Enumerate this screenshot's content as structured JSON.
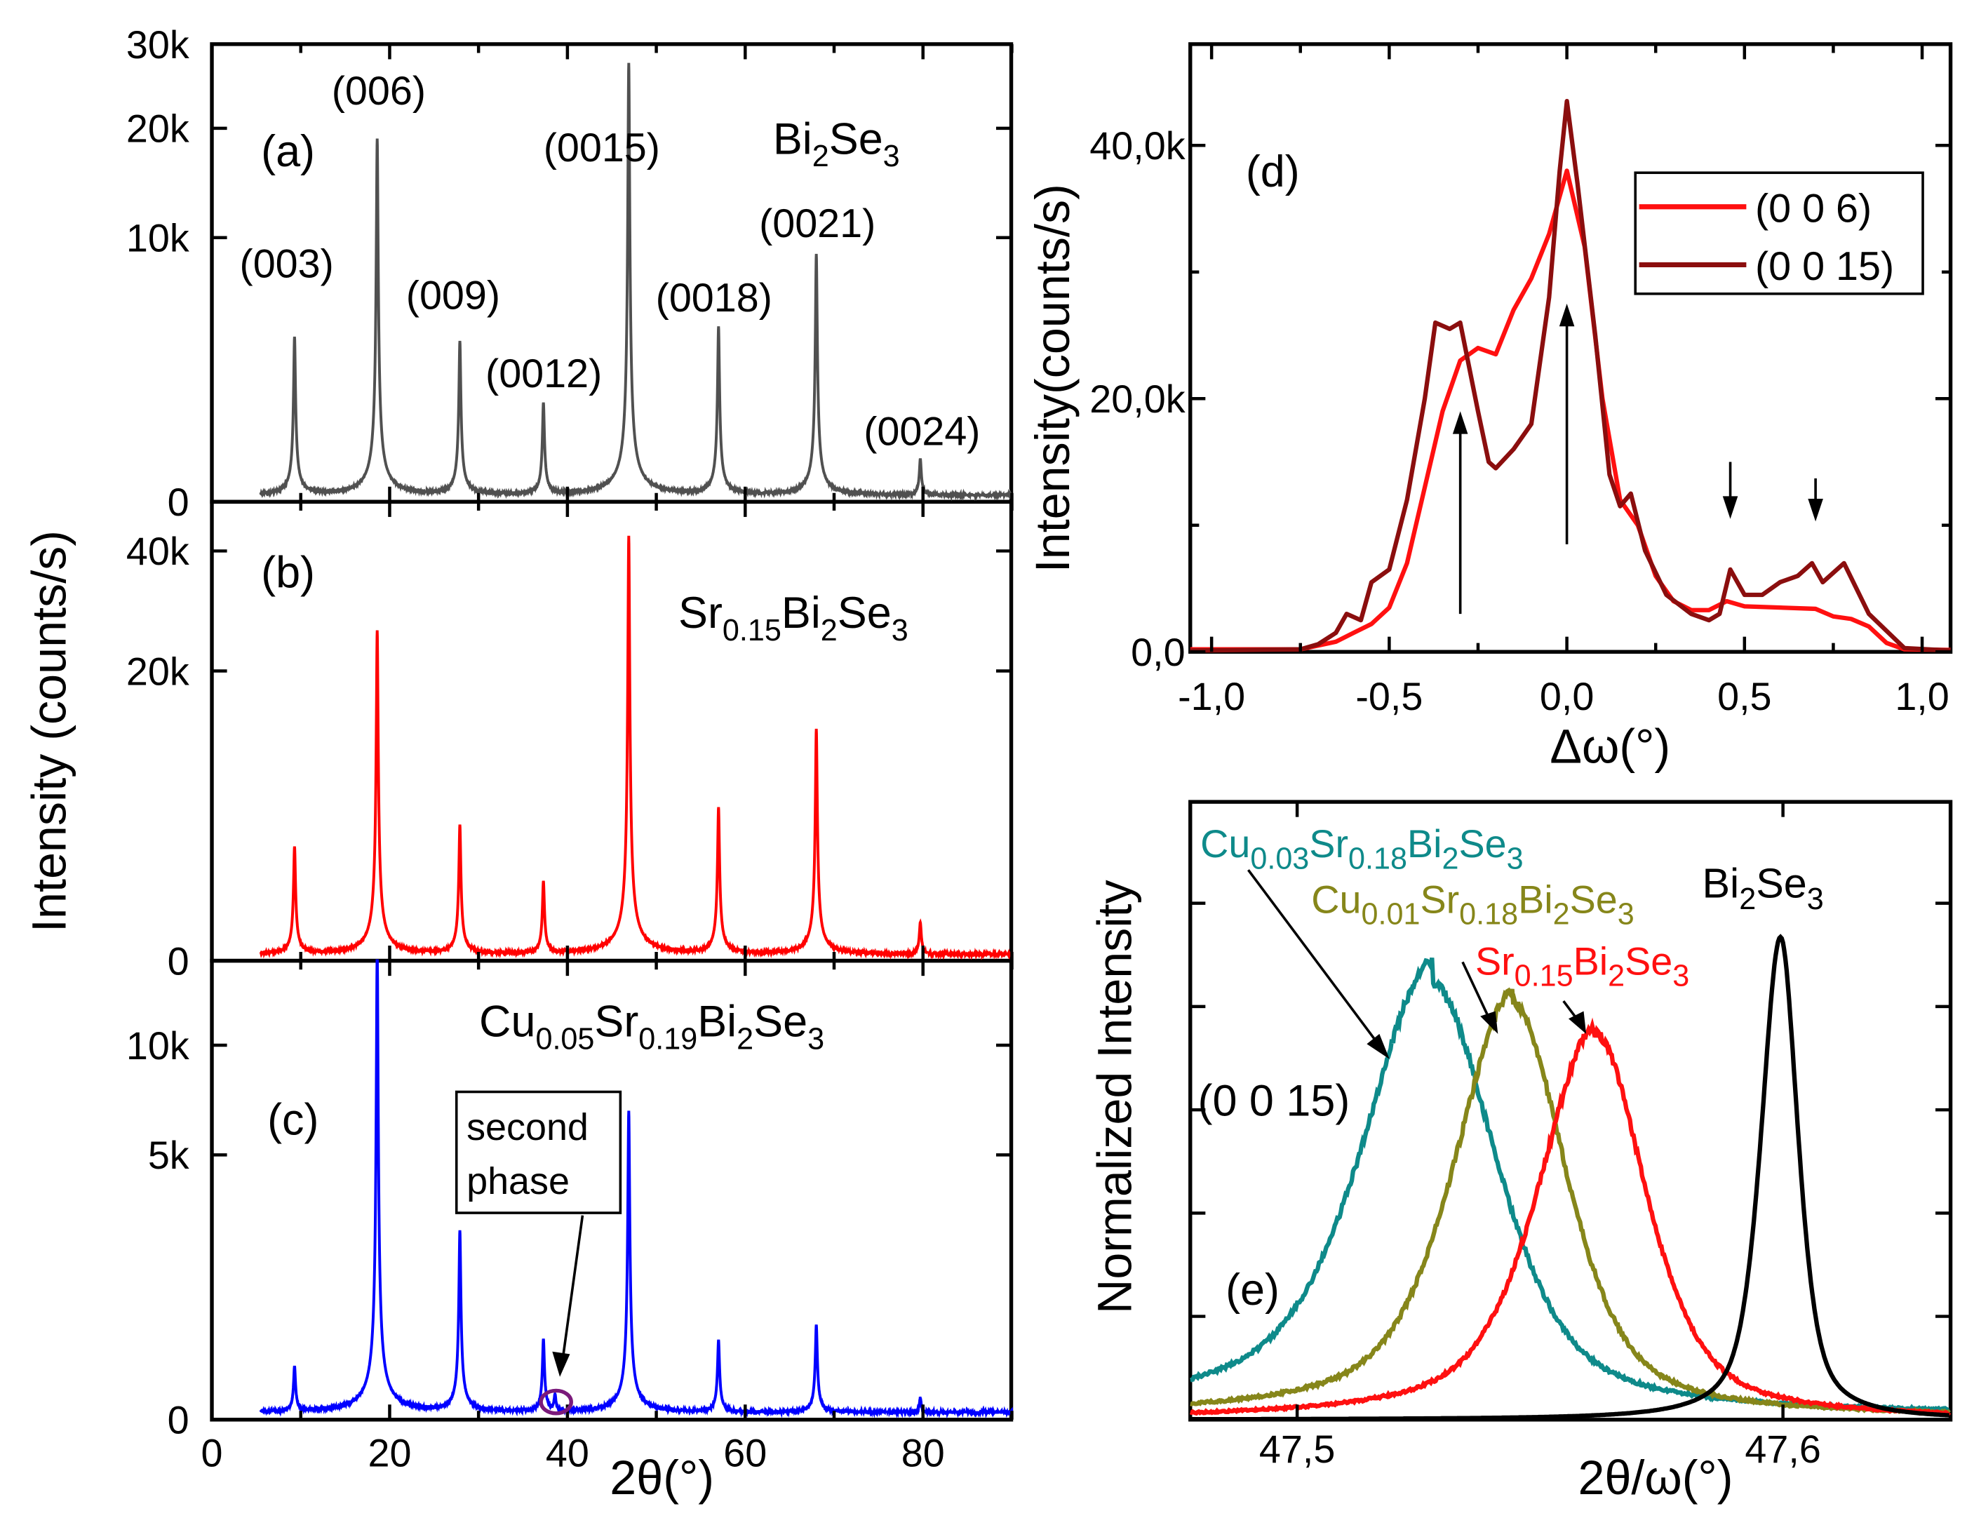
{
  "chart_data": [
    {
      "type": "line",
      "panel": "(a)",
      "title": "Bi2Se3",
      "title_parts": [
        "Bi",
        "2",
        "Se",
        "3"
      ],
      "color": "#505050",
      "xlabel": "2θ(°)",
      "ylabel": "Intensity (counts/s)",
      "xlim": [
        0,
        90
      ],
      "ylim": [
        0,
        30000
      ],
      "yscale": "sqrt",
      "xticks": [
        "0",
        "20",
        "40",
        "60",
        "80"
      ],
      "yticks": [
        {
          "v": 0,
          "t": "0"
        },
        {
          "v": 10000,
          "t": "10k"
        },
        {
          "v": 20000,
          "t": "20k"
        },
        {
          "v": 30000,
          "t": "30k"
        }
      ],
      "baseline": 6,
      "x_start": 5.5,
      "peaks": [
        {
          "hkl": "(003)",
          "x": 9.3,
          "y": 3900
        },
        {
          "hkl": "(006)",
          "x": 18.6,
          "y": 18900
        },
        {
          "hkl": "(009)",
          "x": 27.9,
          "y": 3700
        },
        {
          "hkl": "(0012)",
          "x": 37.3,
          "y": 1400
        },
        {
          "hkl": "(0015)",
          "x": 46.9,
          "y": 27600
        },
        {
          "hkl": "(0018)",
          "x": 57.0,
          "y": 4400
        },
        {
          "hkl": "(0021)",
          "x": 68.0,
          "y": 8800
        },
        {
          "hkl": "(0024)",
          "x": 79.7,
          "y": 260
        }
      ]
    },
    {
      "type": "line",
      "panel": "(b)",
      "title": "Sr0.15Bi2Se3",
      "title_parts": [
        "Sr",
        "0.15",
        "Bi",
        "2",
        "Se",
        "3"
      ],
      "color": "#ff0000",
      "xlim": [
        0,
        90
      ],
      "ylim": [
        0,
        50000
      ],
      "yscale": "sqrt",
      "yticks": [
        {
          "v": 0,
          "t": "0"
        },
        {
          "v": 20000,
          "t": "20k"
        },
        {
          "v": 40000,
          "t": "40k"
        }
      ],
      "baseline": 10,
      "x_start": 5.5,
      "peaks": [
        {
          "x": 9.3,
          "y": 3100
        },
        {
          "x": 18.6,
          "y": 26000
        },
        {
          "x": 27.9,
          "y": 4400
        },
        {
          "x": 37.3,
          "y": 1500
        },
        {
          "x": 46.9,
          "y": 43000
        },
        {
          "x": 57.0,
          "y": 5600
        },
        {
          "x": 68.0,
          "y": 12800
        },
        {
          "x": 79.7,
          "y": 340
        }
      ]
    },
    {
      "type": "line",
      "panel": "(c)",
      "title": "Cu0.05Sr0.19Bi2Se3",
      "title_parts": [
        "Cu",
        "0.05",
        "Sr",
        "0.19",
        "Bi",
        "2",
        "Se",
        "3"
      ],
      "color": "#0000ff",
      "xlim": [
        0,
        90
      ],
      "ylim": [
        0,
        15000
      ],
      "yscale": "sqrt",
      "yticks": [
        {
          "v": 0,
          "t": "0"
        },
        {
          "v": 5000,
          "t": "5k"
        },
        {
          "v": 10000,
          "t": "10k"
        }
      ],
      "baseline": 4,
      "x_start": 5.5,
      "annotation": {
        "line1": "second",
        "line2": "phase",
        "x": 38.6
      },
      "peaks": [
        {
          "x": 9.3,
          "y": 200
        },
        {
          "x": 18.6,
          "y": 16000
        },
        {
          "x": 27.9,
          "y": 2550
        },
        {
          "x": 37.3,
          "y": 460
        },
        {
          "x": 38.6,
          "y": 40
        },
        {
          "x": 46.9,
          "y": 6800
        },
        {
          "x": 57.0,
          "y": 450
        },
        {
          "x": 68.0,
          "y": 640
        },
        {
          "x": 79.7,
          "y": 30
        }
      ]
    },
    {
      "type": "line",
      "panel": "(d)",
      "xlabel": "Δω(°)",
      "ylabel": "Intensity(counts/s)",
      "xlim": [
        -1.06,
        1.08
      ],
      "ylim": [
        0,
        48000
      ],
      "xticks": [
        {
          "v": -1,
          "t": "-1,0"
        },
        {
          "v": -0.5,
          "t": "-0,5"
        },
        {
          "v": 0,
          "t": "0,0"
        },
        {
          "v": 0.5,
          "t": "0,5"
        },
        {
          "v": 1,
          "t": "1,0"
        }
      ],
      "yticks": [
        {
          "v": 0,
          "t": "0,0"
        },
        {
          "v": 20000,
          "t": "20,0k"
        },
        {
          "v": 40000,
          "t": "40,0k"
        }
      ],
      "legend": "top-right",
      "series": [
        {
          "name": "(0 0 6)",
          "color": "#ff1010",
          "points": [
            [
              -1.06,
              200
            ],
            [
              -0.75,
              200
            ],
            [
              -0.65,
              800
            ],
            [
              -0.6,
              1500
            ],
            [
              -0.55,
              2200
            ],
            [
              -0.5,
              3500
            ],
            [
              -0.45,
              7000
            ],
            [
              -0.4,
              13000
            ],
            [
              -0.35,
              19000
            ],
            [
              -0.3,
              23000
            ],
            [
              -0.25,
              24000
            ],
            [
              -0.2,
              23500
            ],
            [
              -0.15,
              27000
            ],
            [
              -0.1,
              29500
            ],
            [
              -0.05,
              33000
            ],
            [
              0,
              38000
            ],
            [
              0.05,
              32000
            ],
            [
              0.1,
              20000
            ],
            [
              0.15,
              12000
            ],
            [
              0.2,
              10000
            ],
            [
              0.25,
              6000
            ],
            [
              0.3,
              4000
            ],
            [
              0.35,
              3300
            ],
            [
              0.4,
              3300
            ],
            [
              0.45,
              4000
            ],
            [
              0.5,
              3600
            ],
            [
              0.6,
              3500
            ],
            [
              0.7,
              3400
            ],
            [
              0.75,
              2800
            ],
            [
              0.8,
              2600
            ],
            [
              0.85,
              2000
            ],
            [
              0.9,
              700
            ],
            [
              0.95,
              200
            ],
            [
              1.08,
              150
            ]
          ]
        },
        {
          "name": "(0 0 15)",
          "color": "#8b0e0e",
          "points": [
            [
              -1.06,
              100
            ],
            [
              -0.75,
              200
            ],
            [
              -0.7,
              600
            ],
            [
              -0.65,
              1500
            ],
            [
              -0.62,
              3000
            ],
            [
              -0.58,
              2500
            ],
            [
              -0.55,
              5500
            ],
            [
              -0.5,
              6500
            ],
            [
              -0.45,
              12000
            ],
            [
              -0.4,
              20000
            ],
            [
              -0.37,
              26000
            ],
            [
              -0.33,
              25500
            ],
            [
              -0.3,
              26000
            ],
            [
              -0.25,
              19000
            ],
            [
              -0.22,
              15000
            ],
            [
              -0.2,
              14500
            ],
            [
              -0.15,
              16000
            ],
            [
              -0.1,
              18000
            ],
            [
              -0.05,
              28000
            ],
            [
              -0.02,
              38000
            ],
            [
              0,
              43500
            ],
            [
              0.03,
              37000
            ],
            [
              0.08,
              25000
            ],
            [
              0.12,
              14000
            ],
            [
              0.15,
              11500
            ],
            [
              0.18,
              12500
            ],
            [
              0.22,
              8000
            ],
            [
              0.28,
              4500
            ],
            [
              0.35,
              3000
            ],
            [
              0.4,
              2500
            ],
            [
              0.43,
              3000
            ],
            [
              0.46,
              6500
            ],
            [
              0.5,
              4500
            ],
            [
              0.55,
              4500
            ],
            [
              0.6,
              5500
            ],
            [
              0.65,
              6000
            ],
            [
              0.69,
              7000
            ],
            [
              0.72,
              5500
            ],
            [
              0.78,
              7000
            ],
            [
              0.85,
              3000
            ],
            [
              0.95,
              300
            ],
            [
              1.08,
              100
            ]
          ]
        }
      ],
      "arrows": [
        {
          "dir": "up",
          "x": -0.3,
          "from": 3000,
          "to": 19000
        },
        {
          "dir": "up",
          "x": 0.0,
          "from": 8500,
          "to": 27500
        },
        {
          "dir": "down",
          "x": 0.46,
          "from": 15000,
          "to": 10500
        },
        {
          "dir": "down",
          "x": 0.7,
          "from": 13700,
          "to": 10300
        }
      ]
    },
    {
      "type": "line",
      "panel": "(e)",
      "annotation": "(0 0 15)",
      "xlabel": "2θ/ω(°)",
      "ylabel": "Normalized Intensity",
      "xlim": [
        47.478,
        47.6345
      ],
      "ylim": [
        0,
        1.28
      ],
      "xticks": [
        {
          "v": 47.5,
          "t": "47,5"
        },
        {
          "v": 47.6,
          "t": "47,6"
        }
      ],
      "series": [
        {
          "name": "Cu0.03Sr0.18Bi2Se3",
          "parts": [
            "Cu",
            "0.03",
            "Sr",
            "0.18",
            "Bi",
            "2",
            "Se",
            "3"
          ],
          "color": "#0e8a8a",
          "center": 47.528,
          "height": 0.89,
          "fwhm": 0.031,
          "baseline": 0.01,
          "left_tail": 0.05
        },
        {
          "name": "Cu0.01Sr0.18Bi2Se3",
          "parts": [
            "Cu",
            "0.01",
            "Sr",
            "0.18",
            "Bi",
            "2",
            "Se",
            "3"
          ],
          "color": "#86861a",
          "center": 47.5444,
          "height": 0.86,
          "fwhm": 0.026,
          "baseline": 0.005,
          "left_tail": 0.02
        },
        {
          "name": "Sr0.15Bi2Se3",
          "parts": [
            "Sr",
            "0.15",
            "Bi",
            "2",
            "Se",
            "3"
          ],
          "color": "#ff1010",
          "center": 47.5613,
          "height": 0.8,
          "fwhm": 0.025,
          "baseline": 0.0,
          "left_tail": 0.01
        },
        {
          "name": "Bi2Se3",
          "parts": [
            "Bi",
            "2",
            "Se",
            "3"
          ],
          "color": "#000000",
          "center": 47.5995,
          "height": 1.0,
          "fwhm": 0.0086,
          "baseline": 0.0,
          "left_tail": 0
        }
      ]
    }
  ]
}
